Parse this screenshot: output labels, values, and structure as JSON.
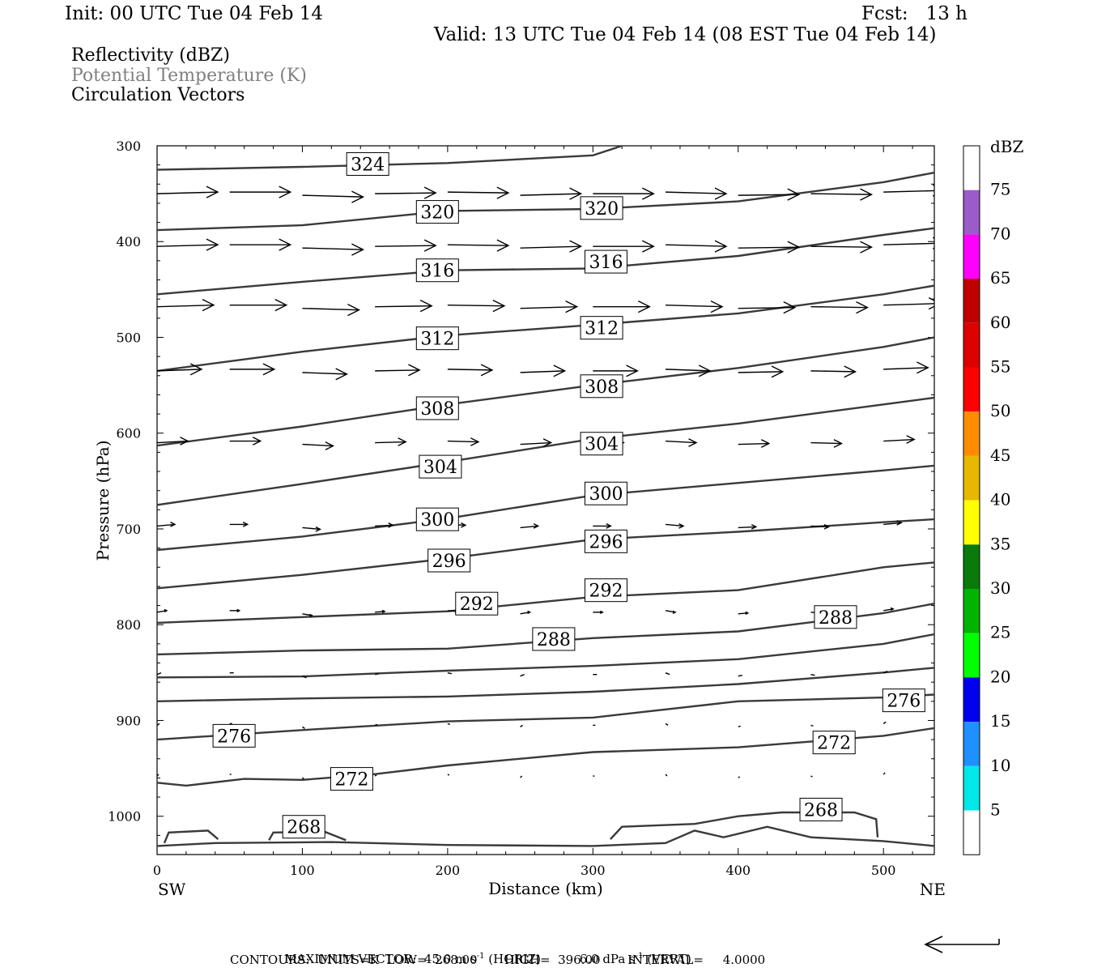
{
  "header": {
    "init": "Init: 00 UTC Tue 04 Feb 14",
    "fcst": "Fcst:   13 h",
    "valid": "Valid: 13 UTC Tue 04 Feb 14 (08 EST Tue 04 Feb 14)",
    "field1": "Reflectivity (dBZ)",
    "field2": "Potential Temperature (K)",
    "field3": "Circulation Vectors"
  },
  "colors": {
    "field2_text": "#808080",
    "contour": "#3a3a3a",
    "vector": "#000000"
  },
  "chart_data": {
    "type": "line",
    "xlabel": "Distance (km)",
    "ylabel": "Pressure (hPa)",
    "xlim": [
      0,
      535
    ],
    "ylim": [
      300,
      1040
    ],
    "y_reversed": true,
    "x_ticks": [
      "0",
      "100",
      "200",
      "300",
      "400",
      "500"
    ],
    "y_ticks": [
      "300",
      "400",
      "500",
      "600",
      "700",
      "800",
      "900",
      "1000"
    ],
    "x_left_label": "SW",
    "x_right_label": "NE",
    "contour_labels": [
      {
        "text": "324",
        "x": 145,
        "y": 319
      },
      {
        "text": "320",
        "x": 193,
        "y": 369
      },
      {
        "text": "320",
        "x": 306,
        "y": 365
      },
      {
        "text": "316",
        "x": 193,
        "y": 430
      },
      {
        "text": "316",
        "x": 309,
        "y": 421
      },
      {
        "text": "312",
        "x": 193,
        "y": 501
      },
      {
        "text": "312",
        "x": 306,
        "y": 490
      },
      {
        "text": "308",
        "x": 193,
        "y": 574
      },
      {
        "text": "308",
        "x": 306,
        "y": 551
      },
      {
        "text": "304",
        "x": 195,
        "y": 635
      },
      {
        "text": "304",
        "x": 306,
        "y": 611
      },
      {
        "text": "300",
        "x": 193,
        "y": 690
      },
      {
        "text": "300",
        "x": 309,
        "y": 663
      },
      {
        "text": "296",
        "x": 201,
        "y": 733
      },
      {
        "text": "296",
        "x": 309,
        "y": 713
      },
      {
        "text": "292",
        "x": 220,
        "y": 778
      },
      {
        "text": "292",
        "x": 309,
        "y": 764
      },
      {
        "text": "288",
        "x": 273,
        "y": 815
      },
      {
        "text": "288",
        "x": 467,
        "y": 792
      },
      {
        "text": "276",
        "x": 53,
        "y": 916
      },
      {
        "text": "276",
        "x": 514,
        "y": 879
      },
      {
        "text": "272",
        "x": 134,
        "y": 961
      },
      {
        "text": "272",
        "x": 466,
        "y": 923
      },
      {
        "text": "268",
        "x": 101,
        "y": 1011
      },
      {
        "text": "268",
        "x": 457,
        "y": 993
      }
    ],
    "colorbar": {
      "title": "dBZ",
      "labels": [
        "75",
        "70",
        "65",
        "60",
        "55",
        "50",
        "45",
        "40",
        "35",
        "30",
        "25",
        "20",
        "15",
        "10",
        "5"
      ],
      "colors": [
        "#ffffff",
        "#9a5cc8",
        "#ff00ff",
        "#c00000",
        "#dd0000",
        "#ff0000",
        "#ff8c00",
        "#e8b800",
        "#ffff00",
        "#0a7a0a",
        "#00b400",
        "#00ff00",
        "#0000ee",
        "#1e90ff",
        "#00e8e8",
        "#ffffff"
      ]
    },
    "max_vector_arrow": "reference-arrow"
  },
  "footer": {
    "line1_prefix": "MAXIMUM VECTOR:  45.0 m s",
    "line1_sup1": "-1",
    "line1_mid": " (HORIZ)          6.0 dPa s",
    "line1_sup2": "-1",
    "line1_suffix": " (VERT)",
    "line2": "CONTOURS:  UNITS=K  LOW=  268.00       HIGH=  396.00       INTERVAL=     4.0000"
  }
}
